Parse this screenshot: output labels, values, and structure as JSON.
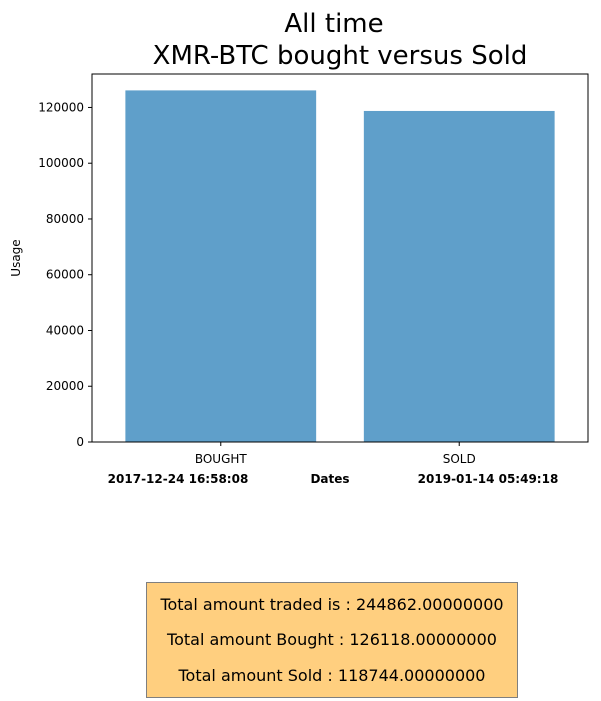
{
  "chart_data": {
    "type": "bar",
    "title": [
      "All time",
      "XMR-BTC bought versus Sold"
    ],
    "categories": [
      "BOUGHT",
      "SOLD"
    ],
    "values": [
      126118,
      118744
    ],
    "ylabel": "Usage",
    "xlabel": "Dates",
    "ylim": [
      0,
      132000
    ],
    "yticks": [
      0,
      20000,
      40000,
      60000,
      80000,
      100000,
      120000
    ],
    "start_date": "2017-12-24 16:58:08",
    "end_date": "2019-01-14 05:49:18",
    "bar_color": "#5f9fca"
  },
  "summary": {
    "total_traded": "Total amount traded is : 244862.00000000",
    "total_bought": "Total amount Bought : 126118.00000000",
    "total_sold": "Total amount Sold : 118744.00000000"
  }
}
